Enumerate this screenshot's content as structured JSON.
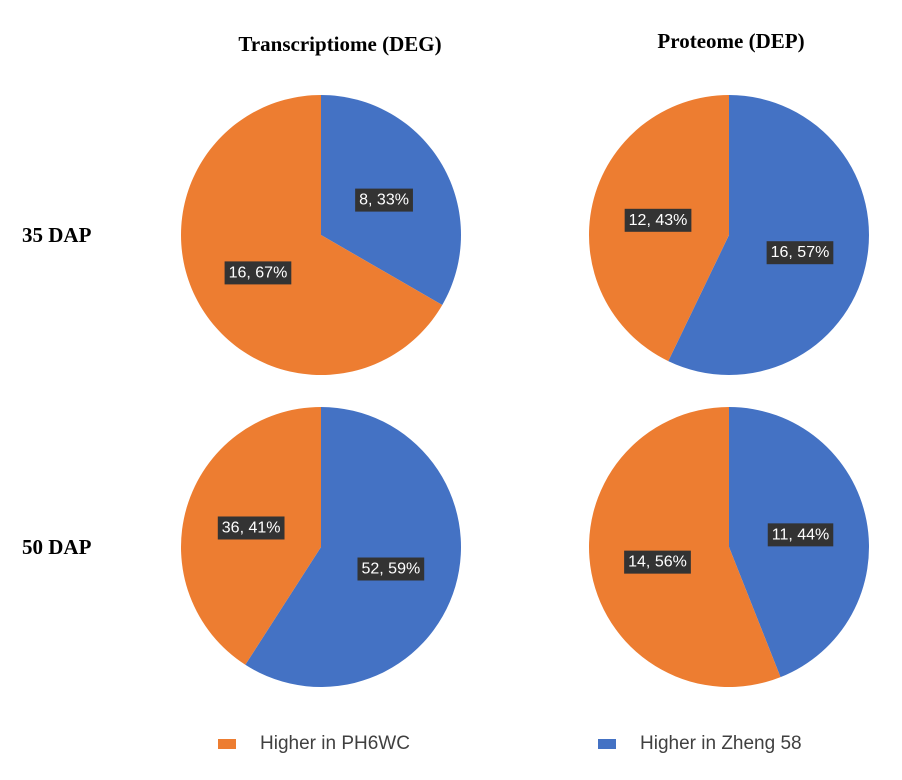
{
  "colors": {
    "PH6WC": "#ED7D31",
    "Zheng58": "#4472C4",
    "label_bg": "#333333",
    "label_text": "#ffffff"
  },
  "columns": [
    "Transcriptiome (DEG)",
    "Proteome (DEP)"
  ],
  "rows": [
    "35 DAP",
    "50 DAP"
  ],
  "legend": [
    {
      "key": "PH6WC",
      "label": "Higher in PH6WC"
    },
    {
      "key": "Zheng58",
      "label": "Higher in Zheng 58"
    }
  ],
  "chart_data": [
    {
      "type": "pie",
      "title": "Transcriptiome (DEG)",
      "row": "35 DAP",
      "slices": [
        {
          "series": "Zheng58",
          "name": "Higher in Zheng 58",
          "value": 8,
          "percent": 33,
          "label": "8, 33%"
        },
        {
          "series": "PH6WC",
          "name": "Higher in PH6WC",
          "value": 16,
          "percent": 67,
          "label": "16, 67%"
        }
      ]
    },
    {
      "type": "pie",
      "title": "Proteome (DEP)",
      "row": "35 DAP",
      "slices": [
        {
          "series": "Zheng58",
          "name": "Higher in Zheng 58",
          "value": 16,
          "percent": 57,
          "label": "16, 57%"
        },
        {
          "series": "PH6WC",
          "name": "Higher in PH6WC",
          "value": 12,
          "percent": 43,
          "label": "12, 43%"
        }
      ]
    },
    {
      "type": "pie",
      "title": "Transcriptiome (DEG)",
      "row": "50 DAP",
      "slices": [
        {
          "series": "Zheng58",
          "name": "Higher in Zheng 58",
          "value": 52,
          "percent": 59,
          "label": "52, 59%"
        },
        {
          "series": "PH6WC",
          "name": "Higher in PH6WC",
          "value": 36,
          "percent": 41,
          "label": "36, 41%"
        }
      ]
    },
    {
      "type": "pie",
      "title": "Proteome (DEP)",
      "row": "50 DAP",
      "slices": [
        {
          "series": "Zheng58",
          "name": "Higher in Zheng 58",
          "value": 11,
          "percent": 44,
          "label": "11, 44%"
        },
        {
          "series": "PH6WC",
          "name": "Higher in PH6WC",
          "value": 14,
          "percent": 56,
          "label": "14, 56%"
        }
      ]
    }
  ]
}
